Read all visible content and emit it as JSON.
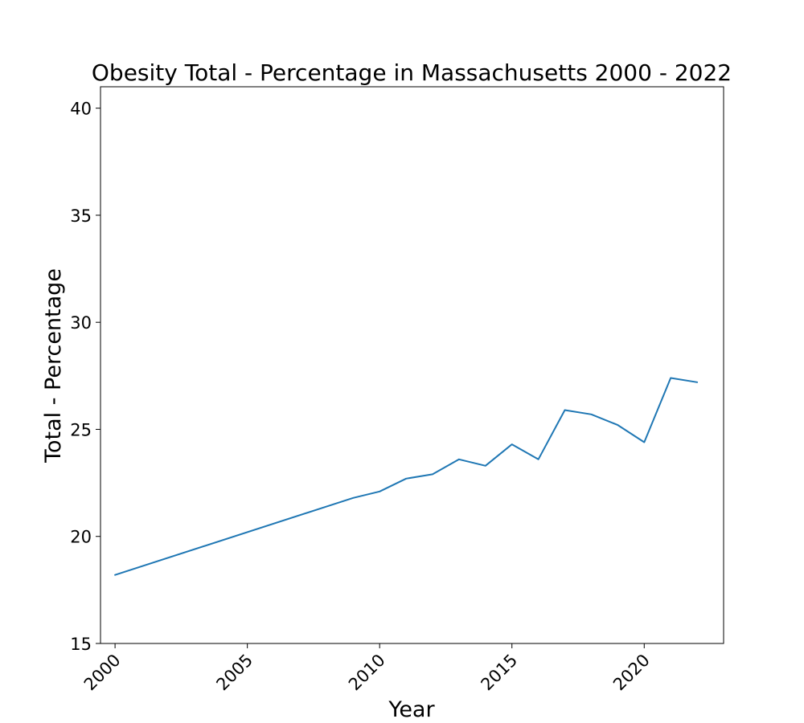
{
  "chart_data": {
    "type": "line",
    "title": "Obesity Total - Percentage in Massachusetts 2000 - 2022",
    "xlabel": "Year",
    "ylabel": "Total - Percentage",
    "xlim": [
      1999.45,
      2023.0
    ],
    "ylim": [
      15,
      41
    ],
    "x_ticks": [
      2000,
      2005,
      2010,
      2015,
      2020
    ],
    "y_ticks": [
      15,
      20,
      25,
      30,
      35,
      40
    ],
    "grid": false,
    "series": [
      {
        "color": "#1f77b4",
        "points": [
          {
            "x": 2000,
            "y": 18.2
          },
          {
            "x": 2009,
            "y": 21.8
          },
          {
            "x": 2010,
            "y": 22.1
          },
          {
            "x": 2011,
            "y": 22.7
          },
          {
            "x": 2012,
            "y": 22.9
          },
          {
            "x": 2013,
            "y": 23.6
          },
          {
            "x": 2014,
            "y": 23.3
          },
          {
            "x": 2015,
            "y": 24.3
          },
          {
            "x": 2016,
            "y": 23.6
          },
          {
            "x": 2017,
            "y": 25.9
          },
          {
            "x": 2018,
            "y": 25.7
          },
          {
            "x": 2019,
            "y": 25.2
          },
          {
            "x": 2020,
            "y": 24.4
          },
          {
            "x": 2021,
            "y": 27.4
          },
          {
            "x": 2022,
            "y": 27.2
          }
        ]
      }
    ]
  }
}
